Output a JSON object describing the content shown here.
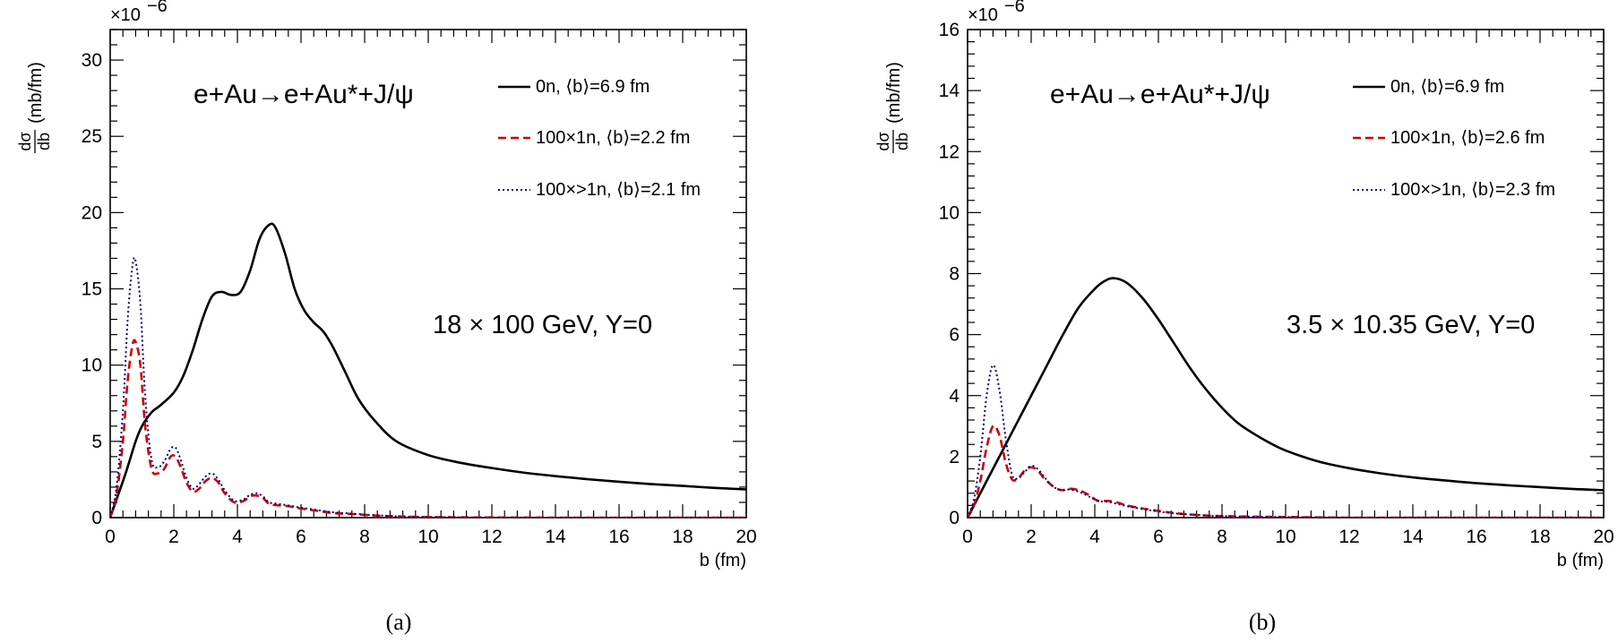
{
  "chart_data": [
    {
      "type": "line",
      "panel_caption": "(a)",
      "reaction": "e+Au→e+Au*+J/ψ",
      "energy_label": "18 × 100 GeV, Y=0",
      "xlabel": "b (fm)",
      "ylabel_num": "dσ",
      "ylabel_den": "db",
      "ylabel_unit": "(mb/fm)",
      "exponent_label": "×10",
      "exponent_power": "−6",
      "xlim": [
        0,
        20
      ],
      "ylim": [
        0,
        32
      ],
      "xticks": [
        0,
        2,
        4,
        6,
        8,
        10,
        12,
        14,
        16,
        18,
        20
      ],
      "yticks": [
        0,
        5,
        10,
        15,
        20,
        25,
        30
      ],
      "series": [
        {
          "name": "0n, ⟨b⟩=6.9 fm",
          "color": "#000000",
          "style": "solid",
          "x": [
            0,
            0.2,
            0.5,
            0.8,
            1.0,
            1.3,
            1.6,
            2.0,
            2.3,
            2.6,
            2.9,
            3.2,
            3.5,
            3.8,
            4.1,
            4.4,
            4.7,
            5.0,
            5.2,
            5.5,
            5.8,
            6.1,
            6.4,
            6.7,
            7.0,
            7.4,
            7.8,
            8.3,
            9.0,
            10,
            11,
            12,
            13,
            14,
            15,
            16,
            17,
            18,
            19,
            20
          ],
          "y": [
            0,
            1.2,
            3.0,
            5.0,
            6.0,
            6.9,
            7.4,
            8.2,
            9.3,
            11.0,
            13.0,
            14.5,
            14.8,
            14.6,
            14.8,
            16.2,
            18.3,
            19.2,
            19.0,
            17.3,
            15.0,
            13.6,
            12.8,
            12.2,
            11.2,
            9.5,
            7.8,
            6.4,
            5.0,
            4.1,
            3.6,
            3.25,
            2.95,
            2.72,
            2.52,
            2.35,
            2.2,
            2.08,
            1.95,
            1.85
          ]
        },
        {
          "name": "100×1n, ⟨b⟩=2.2 fm",
          "color": "#cc0000",
          "style": "dashed",
          "x": [
            0,
            0.2,
            0.4,
            0.55,
            0.7,
            0.8,
            0.95,
            1.1,
            1.3,
            1.5,
            1.7,
            1.9,
            2.05,
            2.2,
            2.4,
            2.6,
            2.8,
            3.0,
            3.2,
            3.4,
            3.6,
            3.9,
            4.2,
            4.4,
            4.6,
            4.8,
            5.0,
            5.3,
            5.6,
            6.0,
            6.5,
            7.0,
            7.5,
            8.0,
            8.5,
            9.0,
            9.5,
            10,
            11,
            12,
            14,
            16,
            18,
            20
          ],
          "y": [
            0,
            1.5,
            5.0,
            9.0,
            11.3,
            11.5,
            10.0,
            6.0,
            3.2,
            2.9,
            3.2,
            4.0,
            4.0,
            3.4,
            2.3,
            1.7,
            1.9,
            2.4,
            2.6,
            2.3,
            1.6,
            1.0,
            1.1,
            1.4,
            1.45,
            1.3,
            0.9,
            0.8,
            0.75,
            0.6,
            0.45,
            0.3,
            0.25,
            0.18,
            0.12,
            0.08,
            0.05,
            0.04,
            0.02,
            0.01,
            0.0,
            0.0,
            0.0,
            0.0
          ]
        },
        {
          "name": "100×>1n, ⟨b⟩=2.1 fm",
          "color": "#000080",
          "style": "dotted",
          "x": [
            0,
            0.2,
            0.4,
            0.55,
            0.7,
            0.8,
            0.95,
            1.1,
            1.3,
            1.5,
            1.7,
            1.9,
            2.05,
            2.2,
            2.4,
            2.6,
            2.8,
            3.0,
            3.2,
            3.4,
            3.6,
            3.9,
            4.2,
            4.4,
            4.6,
            4.8,
            5.0,
            5.3,
            5.6,
            6.0,
            6.5,
            7.0,
            7.5,
            8.0,
            8.5,
            9.0,
            9.5,
            10,
            11,
            12,
            14,
            16,
            18,
            20
          ],
          "y": [
            0,
            2.0,
            7.0,
            13.0,
            16.5,
            16.8,
            14.0,
            8.0,
            3.8,
            3.3,
            3.7,
            4.5,
            4.6,
            3.9,
            2.6,
            1.9,
            2.2,
            2.7,
            2.9,
            2.5,
            1.8,
            1.1,
            1.2,
            1.5,
            1.6,
            1.4,
            1.0,
            0.9,
            0.8,
            0.65,
            0.5,
            0.35,
            0.28,
            0.2,
            0.14,
            0.09,
            0.06,
            0.04,
            0.02,
            0.01,
            0.0,
            0.0,
            0.0,
            0.0
          ]
        }
      ]
    },
    {
      "type": "line",
      "panel_caption": "(b)",
      "reaction": "e+Au→e+Au*+J/ψ",
      "energy_label": "3.5 × 10.35 GeV, Y=0",
      "xlabel": "b (fm)",
      "ylabel_num": "dσ",
      "ylabel_den": "db",
      "ylabel_unit": "(mb/fm)",
      "exponent_label": "×10",
      "exponent_power": "−6",
      "xlim": [
        0,
        20
      ],
      "ylim": [
        0,
        16
      ],
      "xticks": [
        0,
        2,
        4,
        6,
        8,
        10,
        12,
        14,
        16,
        18,
        20
      ],
      "yticks": [
        0,
        2,
        4,
        6,
        8,
        10,
        12,
        14,
        16
      ],
      "series": [
        {
          "name": "0n, ⟨b⟩=6.9 fm",
          "color": "#000000",
          "style": "solid",
          "x": [
            0,
            0.3,
            0.6,
            1.0,
            1.5,
            2.0,
            2.5,
            3.0,
            3.5,
            4.0,
            4.3,
            4.6,
            5.0,
            5.5,
            6.0,
            6.5,
            7.0,
            7.5,
            8.0,
            8.5,
            9.0,
            9.5,
            10,
            11,
            12,
            13,
            14,
            15,
            16,
            17,
            18,
            19,
            20
          ],
          "y": [
            0,
            0.6,
            1.2,
            2.0,
            3.0,
            4.0,
            5.0,
            6.0,
            6.9,
            7.5,
            7.75,
            7.85,
            7.7,
            7.2,
            6.5,
            5.7,
            4.9,
            4.2,
            3.6,
            3.1,
            2.75,
            2.45,
            2.2,
            1.85,
            1.62,
            1.45,
            1.32,
            1.22,
            1.13,
            1.06,
            1.0,
            0.94,
            0.9
          ]
        },
        {
          "name": "100×1n, ⟨b⟩=2.6 fm",
          "color": "#cc0000",
          "style": "dashed",
          "x": [
            0,
            0.2,
            0.4,
            0.6,
            0.8,
            1.0,
            1.2,
            1.4,
            1.6,
            1.8,
            2.0,
            2.2,
            2.4,
            2.6,
            2.8,
            3.0,
            3.2,
            3.5,
            3.8,
            4.1,
            4.4,
            4.7,
            5.0,
            5.5,
            6.0,
            6.5,
            7.0,
            7.5,
            8.0,
            9.0,
            10,
            12,
            14,
            16,
            18,
            20
          ],
          "y": [
            0,
            0.4,
            1.2,
            2.3,
            3.0,
            2.7,
            1.8,
            1.25,
            1.3,
            1.55,
            1.65,
            1.55,
            1.3,
            1.1,
            0.95,
            0.9,
            0.95,
            0.9,
            0.75,
            0.55,
            0.55,
            0.5,
            0.4,
            0.3,
            0.22,
            0.15,
            0.1,
            0.07,
            0.05,
            0.03,
            0.02,
            0.0,
            0.0,
            0.0,
            0.0,
            0.0
          ]
        },
        {
          "name": "100×>1n, ⟨b⟩=2.3 fm",
          "color": "#000080",
          "style": "dotted",
          "x": [
            0,
            0.2,
            0.4,
            0.6,
            0.8,
            1.0,
            1.2,
            1.4,
            1.6,
            1.8,
            2.0,
            2.2,
            2.4,
            2.6,
            2.8,
            3.0,
            3.2,
            3.5,
            3.8,
            4.1,
            4.4,
            4.7,
            5.0,
            5.5,
            6.0,
            6.5,
            7.0,
            7.5,
            8.0,
            9.0,
            10,
            12,
            14,
            16,
            18,
            20
          ],
          "y": [
            0,
            0.6,
            2.0,
            4.0,
            5.0,
            4.2,
            2.6,
            1.4,
            1.3,
            1.5,
            1.7,
            1.6,
            1.35,
            1.1,
            0.95,
            0.9,
            0.92,
            0.85,
            0.7,
            0.55,
            0.52,
            0.45,
            0.38,
            0.28,
            0.2,
            0.14,
            0.1,
            0.07,
            0.05,
            0.03,
            0.02,
            0.0,
            0.0,
            0.0,
            0.0,
            0.0
          ]
        }
      ]
    }
  ]
}
